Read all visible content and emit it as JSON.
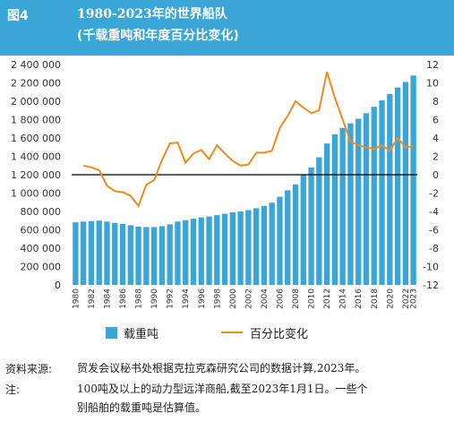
{
  "header": {
    "figure_no": "图4",
    "title": "1980-2023年的世界船队",
    "subtitle": "(千载重吨和年度百分比变化)"
  },
  "chart_data": {
    "type": "bar+line",
    "categories": [
      1980,
      1981,
      1982,
      1983,
      1984,
      1985,
      1986,
      1987,
      1988,
      1989,
      1990,
      1991,
      1992,
      1993,
      1994,
      1995,
      1996,
      1997,
      1998,
      1999,
      2000,
      2001,
      2002,
      2003,
      2004,
      2005,
      2006,
      2007,
      2008,
      2009,
      2010,
      2011,
      2012,
      2013,
      2014,
      2015,
      2016,
      2017,
      2018,
      2019,
      2020,
      2021,
      2022,
      2023
    ],
    "x_tick_labels": [
      "1980",
      "1982",
      "1984",
      "1986",
      "1988",
      "1990",
      "1992",
      "1994",
      "1996",
      "1998",
      "2000",
      "2002",
      "2004",
      "2006",
      "2008",
      "2010",
      "2012",
      "2014",
      "2016",
      "2018",
      "2020",
      "2022",
      "2023"
    ],
    "series": [
      {
        "name": "载重吨",
        "type": "bar",
        "axis": "left",
        "color": "#3aa6d8",
        "values": [
          682000,
          690000,
          695000,
          700000,
          690000,
          675000,
          665000,
          650000,
          635000,
          630000,
          630000,
          640000,
          660000,
          690000,
          705000,
          720000,
          735000,
          745000,
          760000,
          775000,
          790000,
          800000,
          815000,
          835000,
          860000,
          895000,
          960000,
          1030000,
          1095000,
          1200000,
          1280000,
          1390000,
          1540000,
          1640000,
          1710000,
          1760000,
          1810000,
          1870000,
          1940000,
          2010000,
          2080000,
          2150000,
          2210000,
          2280000
        ]
      },
      {
        "name": "百分比变化",
        "type": "line",
        "axis": "right",
        "color": "#f08b1c",
        "values": [
          null,
          1.0,
          0.8,
          0.5,
          -1.2,
          -1.8,
          -1.9,
          -2.3,
          -3.4,
          -1.1,
          -0.6,
          1.6,
          3.4,
          3.5,
          1.3,
          2.3,
          2.7,
          1.7,
          3.2,
          2.3,
          1.5,
          1.0,
          1.1,
          2.4,
          2.4,
          2.6,
          5.1,
          6.4,
          8.0,
          7.3,
          6.7,
          7.0,
          11.2,
          8.4,
          6.0,
          3.6,
          3.2,
          3.0,
          2.8,
          3.2,
          2.6,
          4.0,
          3.0,
          3.1
        ]
      }
    ],
    "left_axis": {
      "min": 0,
      "max": 2400000,
      "step": 200000,
      "tick_labels": [
        "0",
        "200 000",
        "400 000",
        "600 000",
        "800 000",
        "1 000 000",
        "1 200 000",
        "1 400 000",
        "1 600 000",
        "1 800 000",
        "2 000 000",
        "2 200 000",
        "2 400 000"
      ]
    },
    "right_axis": {
      "min": -12,
      "max": 12,
      "step": 2,
      "tick_labels": [
        "-12",
        "-10",
        "-8",
        "-6",
        "-4",
        "-2",
        "0",
        "2",
        "4",
        "6",
        "8",
        "10",
        "12"
      ]
    },
    "reference_line": {
      "axis": "right",
      "value": 0,
      "color": "#000000"
    },
    "legend": {
      "placement": "bottom",
      "items": [
        "载重吨",
        "百分比变化"
      ]
    }
  },
  "notes": {
    "source_label": "资料来源:",
    "source_text": "贸发会议秘书处根据克拉克森研究公司的数据计算,2023年。",
    "note_label": "注:",
    "note_line1": "100吨及以上的动力型远洋商船,截至2023年1月1日。一些个",
    "note_line2": "别船舶的载重吨是估算值。"
  }
}
